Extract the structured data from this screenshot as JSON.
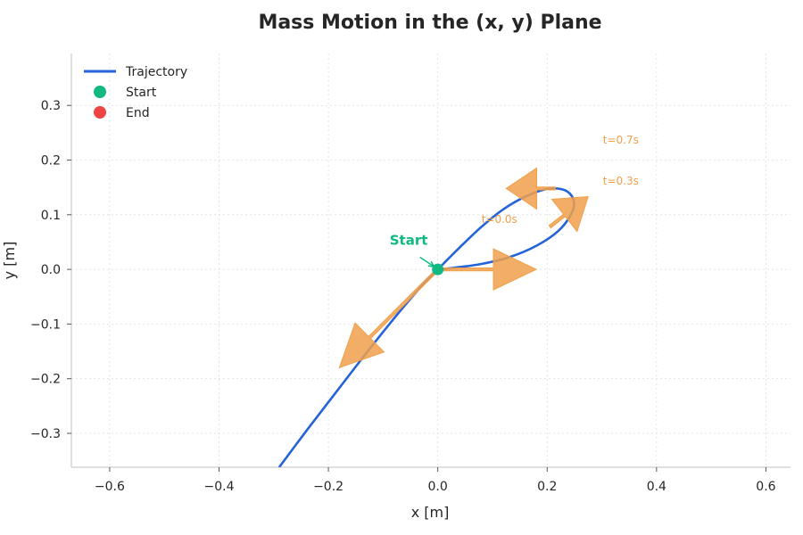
{
  "chart_data": {
    "type": "line",
    "title": "Mass Motion in the (x, y) Plane",
    "xlabel": "x [m]",
    "ylabel": "y [m]",
    "xlim": [
      -0.67,
      0.645
    ],
    "ylim": [
      -0.362,
      0.395
    ],
    "xticks": [
      -0.6,
      -0.4,
      -0.2,
      0.0,
      0.2,
      0.4,
      0.6
    ],
    "xtick_labels": [
      "−0.6",
      "−0.4",
      "−0.2",
      "0.0",
      "0.2",
      "0.4",
      "0.6"
    ],
    "yticks": [
      -0.3,
      -0.2,
      -0.1,
      0.0,
      0.1,
      0.2,
      0.3
    ],
    "ytick_labels": [
      "−0.3",
      "−0.2",
      "−0.1",
      "0.0",
      "0.1",
      "0.2",
      "0.3"
    ],
    "grid": true,
    "legend_position": "upper-left",
    "legend": [
      {
        "label": "Trajectory",
        "kind": "line",
        "color": "#2563d9"
      },
      {
        "label": "Start",
        "kind": "marker",
        "color": "#10b981"
      },
      {
        "label": "End",
        "kind": "marker",
        "color": "#ef4444"
      }
    ],
    "series": [
      {
        "name": "Trajectory",
        "color": "#2563d9",
        "points": [
          [
            -0.29,
            -0.362
          ],
          [
            -0.24,
            -0.295
          ],
          [
            -0.19,
            -0.23
          ],
          [
            -0.14,
            -0.165
          ],
          [
            -0.09,
            -0.102
          ],
          [
            -0.045,
            -0.048
          ],
          [
            -0.015,
            -0.015
          ],
          [
            0.0,
            0.0
          ],
          [
            0.04,
            0.04
          ],
          [
            0.08,
            0.078
          ],
          [
            0.12,
            0.11
          ],
          [
            0.16,
            0.133
          ],
          [
            0.2,
            0.147
          ],
          [
            0.232,
            0.145
          ],
          [
            0.248,
            0.128
          ],
          [
            0.245,
            0.103
          ],
          [
            0.22,
            0.07
          ],
          [
            0.18,
            0.043
          ],
          [
            0.13,
            0.022
          ],
          [
            0.08,
            0.01
          ],
          [
            0.03,
            0.003
          ],
          [
            0.0,
            0.0
          ]
        ]
      }
    ],
    "start_point": {
      "x": 0.0,
      "y": 0.0,
      "color": "#10b981"
    },
    "start_annotation": {
      "text": "Start",
      "x": -0.088,
      "y": 0.045,
      "color": "#10b981"
    },
    "velocity_arrows": [
      {
        "x": 0.0,
        "y": 0.0,
        "dx": 0.18,
        "dy": 0.0
      },
      {
        "x": 0.0,
        "y": 0.0,
        "dx": -0.18,
        "dy": -0.18
      },
      {
        "x": 0.205,
        "y": 0.078,
        "dx": 0.07,
        "dy": 0.055
      },
      {
        "x": 0.215,
        "y": 0.148,
        "dx": -0.09,
        "dy": 0.0
      }
    ],
    "arrow_color": "#f0a04b",
    "time_labels": [
      {
        "text": "t=0.0s",
        "x": 0.08,
        "y": 0.085
      },
      {
        "text": "t=0.3s",
        "x": 0.302,
        "y": 0.155
      },
      {
        "text": "t=0.7s",
        "x": 0.302,
        "y": 0.23
      }
    ]
  }
}
